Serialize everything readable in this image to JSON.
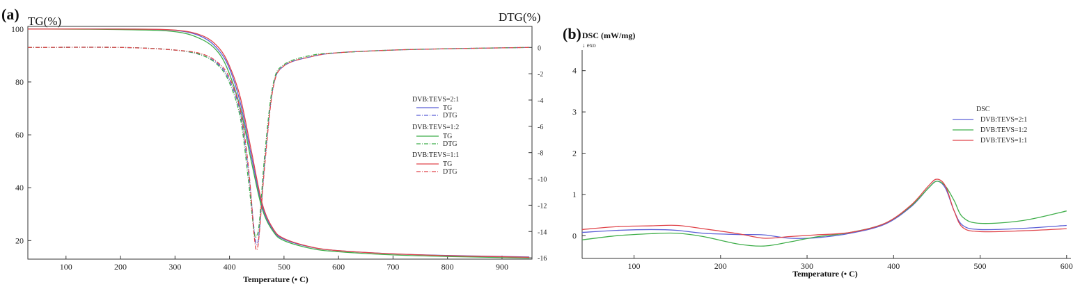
{
  "panel_a": {
    "label": "(a)",
    "left_ylabel": "TG(%)",
    "right_ylabel": "DTG(%)",
    "xlabel": "Temperature (• C)",
    "legend": [
      {
        "heading": "DVB:TEVS=2:1",
        "items": [
          {
            "label": "TG",
            "style": "solid",
            "color": "#5b5fd6"
          },
          {
            "label": "DTG",
            "style": "dashdot",
            "color": "#5b5fd6"
          }
        ]
      },
      {
        "heading": "DVB:TEVS=1:2",
        "items": [
          {
            "label": "TG",
            "style": "solid",
            "color": "#3fae4a"
          },
          {
            "label": "DTG",
            "style": "dashdot",
            "color": "#3fae4a"
          }
        ]
      },
      {
        "heading": "DVB:TEVS=1:1",
        "items": [
          {
            "label": "TG",
            "style": "solid",
            "color": "#e0444a"
          },
          {
            "label": "DTG",
            "style": "dashdot",
            "color": "#e0444a"
          }
        ]
      }
    ]
  },
  "panel_b": {
    "label": "(b)",
    "ylabel": "DSC (mW/mg)",
    "exo_label": "↓ exo",
    "xlabel": "Temperature (• C)",
    "legend_title": "DSC",
    "legend": [
      {
        "label": "DVB:TEVS=2:1",
        "color": "#5b5fd6"
      },
      {
        "label": "DVB:TEVS=1:2",
        "color": "#3fae4a"
      },
      {
        "label": "DVB:TEVS=1:1",
        "color": "#e0444a"
      }
    ]
  },
  "chart_data": [
    {
      "type": "line",
      "panel": "(a)",
      "xlabel": "Temperature (• C)",
      "ylabel": "TG(%)",
      "y2label": "DTG(%)",
      "xlim": [
        30,
        955
      ],
      "ylim": [
        13,
        101
      ],
      "y2lim": [
        -16.1,
        1.6
      ],
      "xticks": [
        100,
        200,
        300,
        400,
        500,
        600,
        700,
        800,
        900
      ],
      "yticks": [
        20,
        40,
        60,
        80,
        100
      ],
      "y2ticks": [
        0,
        -2,
        -4,
        -6,
        -8,
        -10,
        -12,
        -14,
        -16
      ],
      "grid": false,
      "legend_position": "right",
      "series": [
        {
          "name": "DVB:TEVS=2:1 TG",
          "axis": "left",
          "color": "#5b5fd6",
          "x": [
            30,
            200,
            300,
            350,
            380,
            400,
            420,
            440,
            460,
            480,
            500,
            550,
            600,
            700,
            800,
            900,
            950
          ],
          "y": [
            100,
            100,
            99.5,
            97,
            92,
            85,
            72,
            52,
            33,
            24,
            20.5,
            17.5,
            16.2,
            15,
            14.4,
            14,
            13.8
          ]
        },
        {
          "name": "DVB:TEVS=2:1 DTG",
          "axis": "right",
          "color": "#5b5fd6",
          "x": [
            30,
            200,
            300,
            350,
            380,
            400,
            420,
            435,
            445,
            450,
            455,
            465,
            480,
            500,
            550,
            600,
            700,
            800,
            950
          ],
          "y": [
            0,
            0,
            -0.2,
            -0.6,
            -1.3,
            -2.5,
            -5.0,
            -9.5,
            -13.8,
            -15.0,
            -13.8,
            -8.5,
            -3.0,
            -1.4,
            -0.7,
            -0.4,
            -0.2,
            -0.1,
            0
          ]
        },
        {
          "name": "DVB:TEVS=1:2 TG",
          "axis": "left",
          "color": "#3fae4a",
          "x": [
            30,
            200,
            300,
            350,
            380,
            400,
            420,
            440,
            460,
            480,
            500,
            550,
            600,
            700,
            800,
            900,
            950
          ],
          "y": [
            100,
            99.8,
            99,
            96,
            91,
            83,
            70,
            50,
            32,
            23.5,
            20,
            17,
            15.8,
            14.6,
            14,
            13.6,
            13.4
          ]
        },
        {
          "name": "DVB:TEVS=1:2 DTG",
          "axis": "right",
          "color": "#3fae4a",
          "x": [
            30,
            200,
            300,
            350,
            380,
            400,
            420,
            435,
            445,
            450,
            455,
            465,
            480,
            500,
            550,
            600,
            700,
            800,
            950
          ],
          "y": [
            0,
            0,
            -0.2,
            -0.6,
            -1.4,
            -2.7,
            -5.4,
            -10.2,
            -14.0,
            -14.3,
            -13.2,
            -8.0,
            -2.8,
            -1.3,
            -0.6,
            -0.4,
            -0.2,
            -0.1,
            0
          ]
        },
        {
          "name": "DVB:TEVS=1:1 TG",
          "axis": "left",
          "color": "#e0444a",
          "x": [
            30,
            200,
            300,
            350,
            380,
            400,
            420,
            440,
            460,
            480,
            500,
            550,
            600,
            700,
            800,
            900,
            950
          ],
          "y": [
            100,
            100,
            99.6,
            97.5,
            93,
            86,
            74,
            54,
            34,
            24.5,
            20.8,
            17.6,
            16.2,
            15,
            14.3,
            13.9,
            13.7
          ]
        },
        {
          "name": "DVB:TEVS=1:1 DTG",
          "axis": "right",
          "color": "#e0444a",
          "x": [
            30,
            200,
            300,
            350,
            380,
            400,
            420,
            435,
            445,
            450,
            455,
            465,
            480,
            500,
            550,
            600,
            700,
            800,
            950
          ],
          "y": [
            0,
            0,
            -0.2,
            -0.5,
            -1.2,
            -2.3,
            -4.8,
            -9.2,
            -14.2,
            -15.4,
            -14.0,
            -8.8,
            -3.1,
            -1.4,
            -0.7,
            -0.4,
            -0.2,
            -0.1,
            0
          ]
        }
      ]
    },
    {
      "type": "line",
      "panel": "(b)",
      "xlabel": "Temperature (• C)",
      "ylabel": "DSC (mW/mg)",
      "xlim": [
        40,
        605
      ],
      "ylim": [
        -0.55,
        4.5
      ],
      "xticks": [
        100,
        200,
        300,
        400,
        500,
        600
      ],
      "yticks": [
        0,
        1,
        2,
        3,
        4
      ],
      "grid": false,
      "legend_position": "right",
      "series": [
        {
          "name": "DVB:TEVS=2:1",
          "color": "#5b5fd6",
          "x": [
            40,
            80,
            120,
            150,
            180,
            220,
            250,
            280,
            310,
            350,
            390,
            420,
            440,
            450,
            460,
            470,
            480,
            500,
            550,
            600
          ],
          "y": [
            0.08,
            0.13,
            0.15,
            0.13,
            0.06,
            0.03,
            0.02,
            -0.06,
            -0.05,
            0.06,
            0.28,
            0.7,
            1.15,
            1.32,
            1.15,
            0.6,
            0.25,
            0.15,
            0.18,
            0.25
          ]
        },
        {
          "name": "DVB:TEVS=1:2",
          "color": "#3fae4a",
          "x": [
            40,
            80,
            120,
            150,
            180,
            220,
            250,
            280,
            310,
            350,
            390,
            420,
            440,
            450,
            460,
            470,
            480,
            500,
            550,
            600
          ],
          "y": [
            -0.1,
            0.0,
            0.05,
            0.06,
            -0.02,
            -0.2,
            -0.25,
            -0.15,
            -0.03,
            0.08,
            0.3,
            0.72,
            1.15,
            1.32,
            1.2,
            0.85,
            0.45,
            0.3,
            0.37,
            0.6
          ]
        },
        {
          "name": "DVB:TEVS=1:1",
          "color": "#e0444a",
          "x": [
            40,
            80,
            120,
            150,
            180,
            220,
            250,
            280,
            310,
            350,
            390,
            420,
            440,
            450,
            460,
            470,
            480,
            500,
            550,
            600
          ],
          "y": [
            0.15,
            0.22,
            0.24,
            0.25,
            0.17,
            0.05,
            -0.06,
            -0.02,
            0.02,
            0.08,
            0.3,
            0.74,
            1.2,
            1.37,
            1.2,
            0.6,
            0.2,
            0.1,
            0.12,
            0.17
          ]
        }
      ]
    }
  ]
}
